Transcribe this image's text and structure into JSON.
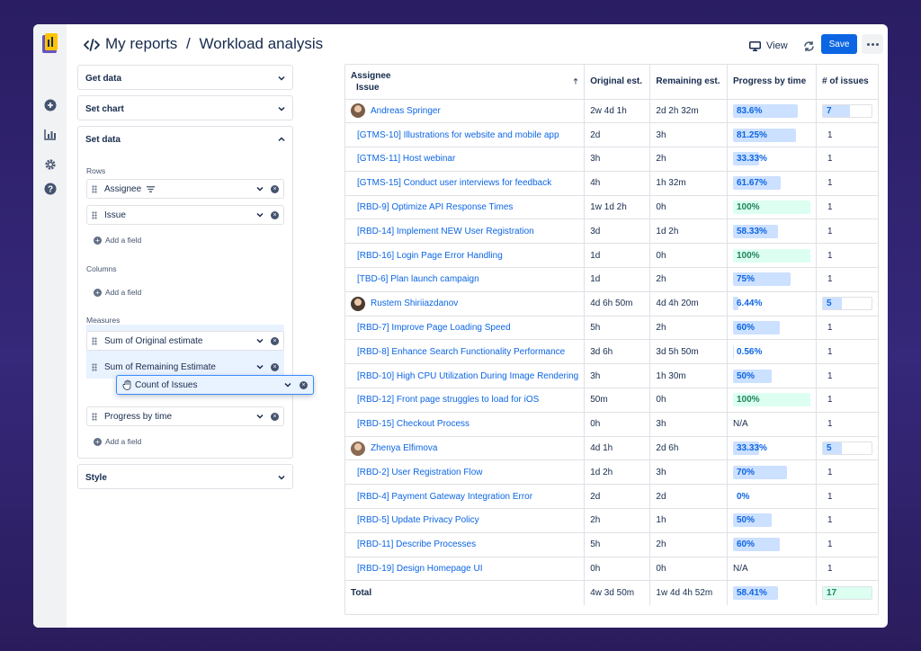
{
  "header": {
    "breadcrumb_root": "My reports",
    "separator": "/",
    "page_title": "Workload analysis",
    "view_label": "View",
    "save_label": "Save"
  },
  "sidebar_icons": [
    "add-icon",
    "chart-icon",
    "gear-icon",
    "help-icon"
  ],
  "config": {
    "get_data": "Get data",
    "set_chart": "Set chart",
    "set_data": "Set data",
    "rows_label": "Rows",
    "rows": [
      "Assignee",
      "Issue"
    ],
    "add_field": "Add a field",
    "columns_label": "Columns",
    "measures_label": "Measures",
    "measures": [
      "Sum of Original estimate",
      "Sum of Remaining Estimate",
      "Progress by time"
    ],
    "dragging_item": "Count of Issues",
    "style": "Style"
  },
  "table": {
    "headers": {
      "assignee": "Assignee",
      "issue": "Issue",
      "original": "Original est.",
      "remaining": "Remaining est.",
      "progress": "Progress by time",
      "count": "# of issues"
    },
    "rows": [
      {
        "kind": "person",
        "name": "Andreas Springer",
        "orig": "2w 4d 1h",
        "rem": "2d 2h 32m",
        "prog": "83.6%",
        "pct": 83.6,
        "count": "7"
      },
      {
        "kind": "issue",
        "name": "[GTMS-10] Illustrations for website and mobile app",
        "orig": "2d",
        "rem": "3h",
        "prog": "81.25%",
        "pct": 81.25,
        "count": "1"
      },
      {
        "kind": "issue",
        "name": "[GTMS-11] Host webinar",
        "orig": "3h",
        "rem": "2h",
        "prog": "33.33%",
        "pct": 33.33,
        "count": "1"
      },
      {
        "kind": "issue",
        "name": "[GTMS-15] Conduct user interviews for feedback",
        "orig": "4h",
        "rem": "1h 32m",
        "prog": "61.67%",
        "pct": 61.67,
        "count": "1"
      },
      {
        "kind": "issue",
        "name": "[RBD-9] Optimize API Response Times",
        "orig": "1w 1d 2h",
        "rem": "0h",
        "prog": "100%",
        "pct": 100,
        "count": "1"
      },
      {
        "kind": "issue",
        "name": "[RBD-14] Implement NEW User Registration",
        "orig": "3d",
        "rem": "1d 2h",
        "prog": "58.33%",
        "pct": 58.33,
        "count": "1"
      },
      {
        "kind": "issue",
        "name": "[RBD-16] Login Page Error Handling",
        "orig": "1d",
        "rem": "0h",
        "prog": "100%",
        "pct": 100,
        "count": "1"
      },
      {
        "kind": "issue",
        "name": "[TBD-6] Plan launch campaign",
        "orig": "1d",
        "rem": "2h",
        "prog": "75%",
        "pct": 75,
        "count": "1"
      },
      {
        "kind": "person",
        "name": "Rustem Shiriiazdanov",
        "orig": "4d 6h 50m",
        "rem": "4d 4h 20m",
        "prog": "6.44%",
        "pct": 6.44,
        "count": "5"
      },
      {
        "kind": "issue",
        "name": "[RBD-7] Improve Page Loading Speed",
        "orig": "5h",
        "rem": "2h",
        "prog": "60%",
        "pct": 60,
        "count": "1"
      },
      {
        "kind": "issue",
        "name": "[RBD-8] Enhance Search Functionality Performance",
        "orig": "3d 6h",
        "rem": "3d 5h 50m",
        "prog": "0.56%",
        "pct": 0.56,
        "count": "1"
      },
      {
        "kind": "issue",
        "name": "[RBD-10] High CPU Utilization During Image Rendering",
        "orig": "3h",
        "rem": "1h 30m",
        "prog": "50%",
        "pct": 50,
        "count": "1"
      },
      {
        "kind": "issue",
        "name": "[RBD-12] Front page struggles to load for iOS",
        "orig": "50m",
        "rem": "0h",
        "prog": "100%",
        "pct": 100,
        "count": "1"
      },
      {
        "kind": "issue",
        "name": "[RBD-15] Checkout Process",
        "orig": "0h",
        "rem": "3h",
        "prog": "N/A",
        "pct": null,
        "count": "1"
      },
      {
        "kind": "person",
        "name": "Zhenya Elfimova",
        "orig": "4d 1h",
        "rem": "2d 6h",
        "prog": "33.33%",
        "pct": 33.33,
        "count": "5"
      },
      {
        "kind": "issue",
        "name": "[RBD-2] User Registration Flow",
        "orig": "1d 2h",
        "rem": "3h",
        "prog": "70%",
        "pct": 70,
        "count": "1"
      },
      {
        "kind": "issue",
        "name": "[RBD-4] Payment Gateway Integration Error",
        "orig": "2d",
        "rem": "2d",
        "prog": "0%",
        "pct": 0,
        "count": "1"
      },
      {
        "kind": "issue",
        "name": "[RBD-5] Update Privacy Policy",
        "orig": "2h",
        "rem": "1h",
        "prog": "50%",
        "pct": 50,
        "count": "1"
      },
      {
        "kind": "issue",
        "name": "[RBD-11] Describe Processes",
        "orig": "5h",
        "rem": "2h",
        "prog": "60%",
        "pct": 60,
        "count": "1"
      },
      {
        "kind": "issue",
        "name": "[RBD-19] Design Homepage UI",
        "orig": "0h",
        "rem": "0h",
        "prog": "N/A",
        "pct": null,
        "count": "1"
      }
    ],
    "total": {
      "label": "Total",
      "orig": "4w 3d 50m",
      "rem": "1w 4d 4h 52m",
      "prog": "58.41%",
      "pct": 58.41,
      "count": "17"
    }
  },
  "colors": {
    "accent": "#0c66e4",
    "progress_fill": "#cce0ff",
    "complete_fill": "#dcfff1",
    "background": "#2a1d63"
  }
}
